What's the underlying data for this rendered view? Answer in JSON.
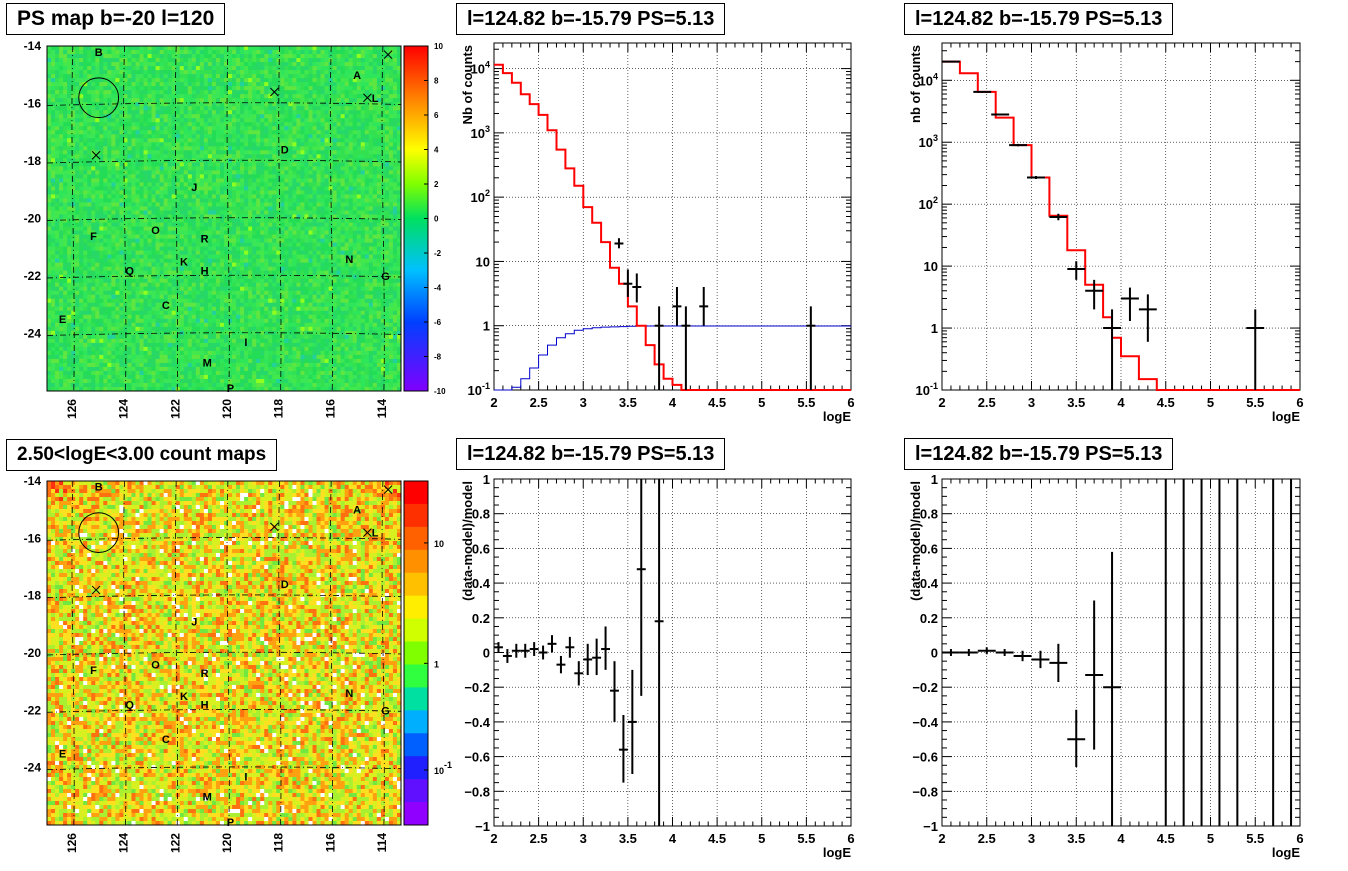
{
  "titles": {
    "map_top": "PS map b=-20 l=120",
    "map_bottom": "2.50<logE<3.00 count maps",
    "spec_mid": "l=124.82 b=-15.79 PS=5.13",
    "spec_right": "l=124.82 b=-15.79 PS=5.13",
    "res_mid": "l=124.82 b=-15.79 PS=5.13",
    "res_right": "l=124.82 b=-15.79 PS=5.13"
  },
  "colors": {
    "data": "#000000",
    "model": "#ff0000",
    "exposure": "#0000cc",
    "grid": "#000000"
  },
  "chart_data": [
    {
      "id": "ps_map",
      "type": "heatmap",
      "title": "PS map b=-20 l=120",
      "xlabel": "",
      "ylabel": "",
      "xlim": [
        127,
        113.3
      ],
      "ylim": [
        -26,
        -14
      ],
      "x_ticks": [
        "126",
        "124",
        "122",
        "120",
        "118",
        "116",
        "114"
      ],
      "y_ticks": [
        "-14",
        "-16",
        "-18",
        "-20",
        "-22",
        "-24"
      ],
      "colorbar": {
        "min": -10,
        "max": 10,
        "scale": "linear",
        "ticks": [
          "10",
          "8",
          "6",
          "4",
          "2",
          "0",
          "-2",
          "-4",
          "-6",
          "-8",
          "-10"
        ]
      },
      "background_value": 0.5,
      "sources": [
        {
          "label": "B",
          "l": 125.0,
          "b": -14.2
        },
        {
          "label": "A",
          "l": 115.0,
          "b": -15.0
        },
        {
          "label": "L",
          "l": 114.3,
          "b": -15.8
        },
        {
          "label": "D",
          "l": 117.8,
          "b": -17.6
        },
        {
          "label": "J",
          "l": 121.3,
          "b": -18.9
        },
        {
          "label": "F",
          "l": 125.2,
          "b": -20.6
        },
        {
          "label": "O",
          "l": 122.8,
          "b": -20.4
        },
        {
          "label": "R",
          "l": 120.9,
          "b": -20.7
        },
        {
          "label": "K",
          "l": 121.7,
          "b": -21.5
        },
        {
          "label": "H",
          "l": 120.9,
          "b": -21.8
        },
        {
          "label": "N",
          "l": 115.3,
          "b": -21.4
        },
        {
          "label": "Q",
          "l": 123.8,
          "b": -21.8
        },
        {
          "label": "G",
          "l": 113.9,
          "b": -22.0
        },
        {
          "label": "C",
          "l": 122.4,
          "b": -23.0
        },
        {
          "label": "E",
          "l": 126.4,
          "b": -23.5
        },
        {
          "label": "I",
          "l": 119.3,
          "b": -24.3
        },
        {
          "label": "M",
          "l": 120.8,
          "b": -25.0
        },
        {
          "label": "P",
          "l": 119.9,
          "b": -25.9
        }
      ],
      "crosses": [
        {
          "l": 113.8,
          "b": -14.3
        },
        {
          "l": 114.6,
          "b": -15.8
        },
        {
          "l": 118.2,
          "b": -15.6
        },
        {
          "l": 125.1,
          "b": -17.8
        }
      ],
      "circle": {
        "l": 125.0,
        "b": -15.8,
        "r": 0.7
      }
    },
    {
      "id": "count_map",
      "type": "heatmap",
      "title": "2.50<logE<3.00 count maps",
      "xlabel": "",
      "ylabel": "",
      "xlim": [
        127,
        113.3
      ],
      "ylim": [
        -26,
        -14
      ],
      "x_ticks": [
        "126",
        "124",
        "122",
        "120",
        "118",
        "116",
        "114"
      ],
      "y_ticks": [
        "-14",
        "-16",
        "-18",
        "-20",
        "-22",
        "-24"
      ],
      "colorbar": {
        "scale": "log",
        "ticks": [
          "10",
          "1",
          "10-1"
        ]
      },
      "sources": [
        {
          "label": "B",
          "l": 125.0,
          "b": -14.2
        },
        {
          "label": "A",
          "l": 115.0,
          "b": -15.0
        },
        {
          "label": "L",
          "l": 114.3,
          "b": -15.8
        },
        {
          "label": "D",
          "l": 117.8,
          "b": -17.6
        },
        {
          "label": "J",
          "l": 121.3,
          "b": -18.9
        },
        {
          "label": "F",
          "l": 125.2,
          "b": -20.6
        },
        {
          "label": "O",
          "l": 122.8,
          "b": -20.4
        },
        {
          "label": "R",
          "l": 120.9,
          "b": -20.7
        },
        {
          "label": "K",
          "l": 121.7,
          "b": -21.5
        },
        {
          "label": "H",
          "l": 120.9,
          "b": -21.8
        },
        {
          "label": "N",
          "l": 115.3,
          "b": -21.4
        },
        {
          "label": "Q",
          "l": 123.8,
          "b": -21.8
        },
        {
          "label": "G",
          "l": 113.9,
          "b": -22.0
        },
        {
          "label": "C",
          "l": 122.4,
          "b": -23.0
        },
        {
          "label": "E",
          "l": 126.4,
          "b": -23.5
        },
        {
          "label": "I",
          "l": 119.3,
          "b": -24.3
        },
        {
          "label": "M",
          "l": 120.8,
          "b": -25.0
        },
        {
          "label": "P",
          "l": 119.9,
          "b": -25.9
        }
      ],
      "crosses": [
        {
          "l": 113.8,
          "b": -14.3
        },
        {
          "l": 114.6,
          "b": -15.8
        },
        {
          "l": 118.2,
          "b": -15.6
        },
        {
          "l": 125.1,
          "b": -17.8
        }
      ],
      "circle": {
        "l": 125.0,
        "b": -15.8,
        "r": 0.7
      }
    },
    {
      "id": "spec_mid",
      "type": "line",
      "title": "l=124.82 b=-15.79 PS=5.13",
      "xlabel": "logE",
      "ylabel": "Nb of counts",
      "xlim": [
        2,
        6
      ],
      "ylim": [
        0.1,
        25000
      ],
      "yscale": "log",
      "grid": true,
      "x_ticks": [
        "2",
        "2.5",
        "3",
        "3.5",
        "4",
        "4.5",
        "5",
        "5.5",
        "6"
      ],
      "y_ticks": [
        {
          "v": 0.1,
          "t": "10-1"
        },
        {
          "v": 1,
          "t": "1"
        },
        {
          "v": 10,
          "t": "10"
        },
        {
          "v": 100,
          "t": "102"
        },
        {
          "v": 1000,
          "t": "103"
        },
        {
          "v": 10000,
          "t": "104"
        }
      ],
      "model_step": {
        "edges": [
          2.0,
          2.1,
          2.2,
          2.3,
          2.4,
          2.5,
          2.6,
          2.7,
          2.8,
          2.9,
          3.0,
          3.1,
          3.2,
          3.3,
          3.4,
          3.5,
          3.6,
          3.7,
          3.8,
          3.9,
          4.0,
          4.1,
          4.2,
          6.0
        ],
        "values": [
          11500,
          8500,
          6000,
          4000,
          2800,
          1900,
          1100,
          550,
          280,
          150,
          70,
          40,
          20,
          8,
          4.5,
          2,
          1,
          0.5,
          0.25,
          0.15,
          0.12,
          0.1,
          0.1
        ]
      },
      "exposure_step": {
        "edges": [
          2.0,
          2.2,
          2.3,
          2.4,
          2.5,
          2.6,
          2.7,
          2.8,
          2.9,
          3.0,
          3.1,
          3.2,
          3.3,
          3.4,
          3.5,
          3.6,
          6.0
        ],
        "values": [
          0.1,
          0.11,
          0.15,
          0.22,
          0.35,
          0.5,
          0.65,
          0.75,
          0.85,
          0.9,
          0.93,
          0.95,
          0.96,
          0.97,
          0.98,
          0.99,
          1.0
        ]
      },
      "data": [
        {
          "x": 3.4,
          "y": 19,
          "ylo": 16,
          "yhi": 23,
          "xw": 0.05
        },
        {
          "x": 3.5,
          "y": 4.5,
          "ylo": 2.8,
          "yhi": 7.5,
          "xw": 0.05
        },
        {
          "x": 3.6,
          "y": 4.0,
          "ylo": 2.3,
          "yhi": 6.5,
          "xw": 0.05
        },
        {
          "x": 3.85,
          "y": 1.0,
          "ylo": 0.1,
          "yhi": 2.0,
          "xw": 0.05
        },
        {
          "x": 4.05,
          "y": 2.0,
          "ylo": 1.0,
          "yhi": 4.0,
          "xw": 0.05
        },
        {
          "x": 4.15,
          "y": 1.0,
          "ylo": 0.1,
          "yhi": 2.0,
          "xw": 0.05
        },
        {
          "x": 4.35,
          "y": 2.0,
          "ylo": 1.0,
          "yhi": 4.0,
          "xw": 0.05
        },
        {
          "x": 5.55,
          "y": 1.0,
          "ylo": 0.1,
          "yhi": 2.0,
          "xw": 0.05
        }
      ]
    },
    {
      "id": "spec_right",
      "type": "line",
      "title": "l=124.82 b=-15.79 PS=5.13",
      "xlabel": "logE",
      "ylabel": "nb of counts",
      "xlim": [
        2,
        6
      ],
      "ylim": [
        0.1,
        40000
      ],
      "yscale": "log",
      "grid": true,
      "x_ticks": [
        "2",
        "2.5",
        "3",
        "3.5",
        "4",
        "4.5",
        "5",
        "5.5",
        "6"
      ],
      "y_ticks": [
        {
          "v": 0.1,
          "t": "10-1"
        },
        {
          "v": 1,
          "t": "1"
        },
        {
          "v": 10,
          "t": "10"
        },
        {
          "v": 100,
          "t": "102"
        },
        {
          "v": 1000,
          "t": "103"
        },
        {
          "v": 10000,
          "t": "104"
        }
      ],
      "model_step": {
        "edges": [
          2.0,
          2.2,
          2.4,
          2.6,
          2.8,
          3.0,
          3.2,
          3.4,
          3.6,
          3.8,
          3.9,
          4.0,
          4.2,
          4.4,
          6.0
        ],
        "values": [
          20000,
          13000,
          6500,
          2500,
          900,
          270,
          65,
          18,
          5,
          1.5,
          0.7,
          0.35,
          0.15,
          0.1
        ]
      },
      "data": [
        {
          "x": 2.1,
          "y": 20000,
          "ylo": 19500,
          "yhi": 20500,
          "xw": 0.1
        },
        {
          "x": 2.45,
          "y": 6500,
          "ylo": 6300,
          "yhi": 6700,
          "xw": 0.1
        },
        {
          "x": 2.65,
          "y": 2800,
          "ylo": 2700,
          "yhi": 2900,
          "xw": 0.1
        },
        {
          "x": 2.85,
          "y": 900,
          "ylo": 860,
          "yhi": 940,
          "xw": 0.1
        },
        {
          "x": 3.05,
          "y": 270,
          "ylo": 255,
          "yhi": 285,
          "xw": 0.1
        },
        {
          "x": 3.3,
          "y": 62,
          "ylo": 55,
          "yhi": 70,
          "xw": 0.1
        },
        {
          "x": 3.5,
          "y": 9,
          "ylo": 6,
          "yhi": 12,
          "xw": 0.1
        },
        {
          "x": 3.7,
          "y": 4,
          "ylo": 2,
          "yhi": 6,
          "xw": 0.1
        },
        {
          "x": 3.9,
          "y": 1.0,
          "ylo": 0.1,
          "yhi": 2.0,
          "xw": 0.1
        },
        {
          "x": 4.1,
          "y": 3,
          "ylo": 1.3,
          "yhi": 4.5,
          "xw": 0.1
        },
        {
          "x": 4.3,
          "y": 2.0,
          "ylo": 0.6,
          "yhi": 3.5,
          "xw": 0.1
        },
        {
          "x": 5.5,
          "y": 1.0,
          "ylo": 0.1,
          "yhi": 2.0,
          "xw": 0.1
        }
      ]
    },
    {
      "id": "res_mid",
      "type": "scatter",
      "title": "l=124.82 b=-15.79 PS=5.13",
      "xlabel": "logE",
      "ylabel": "(data-model)/model",
      "xlim": [
        2,
        6
      ],
      "ylim": [
        -1,
        1
      ],
      "grid": true,
      "x_ticks": [
        "2",
        "2.5",
        "3",
        "3.5",
        "4",
        "4.5",
        "5",
        "5.5",
        "6"
      ],
      "y_ticks": [
        {
          "v": -1,
          "t": "−1"
        },
        {
          "v": -0.8,
          "t": "−0.8"
        },
        {
          "v": -0.6,
          "t": "−0.6"
        },
        {
          "v": -0.4,
          "t": "−0.4"
        },
        {
          "v": -0.2,
          "t": "−0.2"
        },
        {
          "v": 0,
          "t": "0"
        },
        {
          "v": 0.2,
          "t": "0.2"
        },
        {
          "v": 0.4,
          "t": "0.4"
        },
        {
          "v": 0.6,
          "t": "0.6"
        },
        {
          "v": 0.8,
          "t": "0.8"
        },
        {
          "v": 1,
          "t": "1"
        }
      ],
      "data": [
        {
          "x": 2.05,
          "y": 0.03,
          "ylo": 0.0,
          "yhi": 0.06,
          "xw": 0.05
        },
        {
          "x": 2.15,
          "y": -0.02,
          "ylo": -0.06,
          "yhi": 0.02,
          "xw": 0.05
        },
        {
          "x": 2.25,
          "y": 0.01,
          "ylo": -0.03,
          "yhi": 0.05,
          "xw": 0.05
        },
        {
          "x": 2.35,
          "y": 0.01,
          "ylo": -0.03,
          "yhi": 0.05,
          "xw": 0.05
        },
        {
          "x": 2.45,
          "y": 0.02,
          "ylo": -0.02,
          "yhi": 0.06,
          "xw": 0.05
        },
        {
          "x": 2.55,
          "y": 0.0,
          "ylo": -0.04,
          "yhi": 0.04,
          "xw": 0.05
        },
        {
          "x": 2.65,
          "y": 0.05,
          "ylo": 0.0,
          "yhi": 0.1,
          "xw": 0.05
        },
        {
          "x": 2.75,
          "y": -0.07,
          "ylo": -0.12,
          "yhi": -0.02,
          "xw": 0.05
        },
        {
          "x": 2.85,
          "y": 0.03,
          "ylo": -0.03,
          "yhi": 0.09,
          "xw": 0.05
        },
        {
          "x": 2.95,
          "y": -0.12,
          "ylo": -0.19,
          "yhi": -0.05,
          "xw": 0.05
        },
        {
          "x": 3.05,
          "y": -0.04,
          "ylo": -0.13,
          "yhi": 0.05,
          "xw": 0.05
        },
        {
          "x": 3.15,
          "y": -0.03,
          "ylo": -0.13,
          "yhi": 0.08,
          "xw": 0.05
        },
        {
          "x": 3.25,
          "y": 0.02,
          "ylo": -0.1,
          "yhi": 0.15,
          "xw": 0.05
        },
        {
          "x": 3.35,
          "y": -0.22,
          "ylo": -0.4,
          "yhi": -0.05,
          "xw": 0.05
        },
        {
          "x": 3.45,
          "y": -0.56,
          "ylo": -0.75,
          "yhi": -0.36,
          "xw": 0.05
        },
        {
          "x": 3.55,
          "y": -0.4,
          "ylo": -0.7,
          "yhi": -0.1,
          "xw": 0.05
        },
        {
          "x": 3.65,
          "y": 0.48,
          "ylo": -0.25,
          "yhi": 1.0,
          "xw": 0.05
        },
        {
          "x": 3.85,
          "y": 0.18,
          "ylo": -1.0,
          "yhi": 1.0,
          "xw": 0.05
        }
      ]
    },
    {
      "id": "res_right",
      "type": "scatter",
      "title": "l=124.82 b=-15.79 PS=5.13",
      "xlabel": "logE",
      "ylabel": "(data-model)/model",
      "xlim": [
        2,
        6
      ],
      "ylim": [
        -1,
        1
      ],
      "grid": true,
      "x_ticks": [
        "2",
        "2.5",
        "3",
        "3.5",
        "4",
        "4.5",
        "5",
        "5.5",
        "6"
      ],
      "y_ticks": [
        {
          "v": -1,
          "t": "−1"
        },
        {
          "v": -0.8,
          "t": "−0.8"
        },
        {
          "v": -0.6,
          "t": "−0.6"
        },
        {
          "v": -0.4,
          "t": "−0.4"
        },
        {
          "v": -0.2,
          "t": "−0.2"
        },
        {
          "v": 0,
          "t": "0"
        },
        {
          "v": 0.2,
          "t": "0.2"
        },
        {
          "v": 0.4,
          "t": "0.4"
        },
        {
          "v": 0.6,
          "t": "0.6"
        },
        {
          "v": 0.8,
          "t": "0.8"
        },
        {
          "v": 1,
          "t": "1"
        }
      ],
      "data": [
        {
          "x": 2.1,
          "y": 0.0,
          "ylo": -0.02,
          "yhi": 0.02,
          "xw": 0.1
        },
        {
          "x": 2.3,
          "y": 0.0,
          "ylo": -0.02,
          "yhi": 0.02,
          "xw": 0.1
        },
        {
          "x": 2.5,
          "y": 0.01,
          "ylo": -0.01,
          "yhi": 0.03,
          "xw": 0.1
        },
        {
          "x": 2.7,
          "y": 0.0,
          "ylo": -0.02,
          "yhi": 0.02,
          "xw": 0.1
        },
        {
          "x": 2.9,
          "y": -0.02,
          "ylo": -0.05,
          "yhi": 0.01,
          "xw": 0.1
        },
        {
          "x": 3.1,
          "y": -0.04,
          "ylo": -0.09,
          "yhi": 0.01,
          "xw": 0.1
        },
        {
          "x": 3.3,
          "y": -0.06,
          "ylo": -0.17,
          "yhi": 0.05,
          "xw": 0.1
        },
        {
          "x": 3.5,
          "y": -0.5,
          "ylo": -0.66,
          "yhi": -0.33,
          "xw": 0.1
        },
        {
          "x": 3.7,
          "y": -0.13,
          "ylo": -0.56,
          "yhi": 0.3,
          "xw": 0.1
        },
        {
          "x": 3.9,
          "y": -0.2,
          "ylo": -1.0,
          "yhi": 0.58,
          "xw": 0.1
        },
        {
          "x": 4.5,
          "y": 0,
          "ylo": -1.0,
          "yhi": 1.0,
          "xw": 0
        },
        {
          "x": 4.7,
          "y": 0,
          "ylo": -1.0,
          "yhi": 1.0,
          "xw": 0
        },
        {
          "x": 4.9,
          "y": 0,
          "ylo": -1.0,
          "yhi": 1.0,
          "xw": 0
        },
        {
          "x": 5.1,
          "y": 0,
          "ylo": -1.0,
          "yhi": 1.0,
          "xw": 0
        },
        {
          "x": 5.3,
          "y": 0,
          "ylo": -1.0,
          "yhi": 1.0,
          "xw": 0
        },
        {
          "x": 5.7,
          "y": 0,
          "ylo": -1.0,
          "yhi": 1.0,
          "xw": 0
        },
        {
          "x": 5.9,
          "y": 0,
          "ylo": -1.0,
          "yhi": 1.0,
          "xw": 0
        }
      ]
    }
  ]
}
